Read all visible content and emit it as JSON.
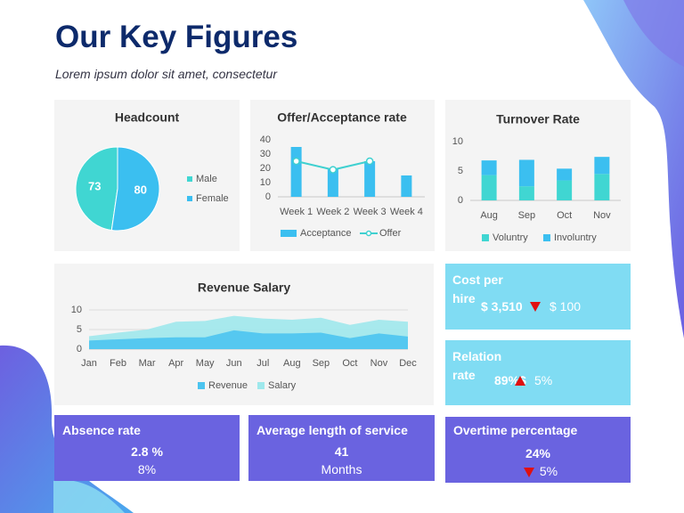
{
  "header": {
    "title": "Our Key Figures",
    "subtitle": "Lorem ipsum dolor sit amet, consectetur"
  },
  "chart_data": [
    {
      "type": "pie",
      "title": "Headcount",
      "categories": [
        "Male",
        "Female"
      ],
      "values": [
        73,
        80
      ],
      "colors": [
        "#40d6d2",
        "#3bbff0"
      ]
    },
    {
      "type": "bar",
      "title": "Offer/Acceptance rate",
      "categories": [
        "Week 1",
        "Week 2",
        "Week 3",
        "Week 4"
      ],
      "series": [
        {
          "name": "Acceptance",
          "type": "bar",
          "color": "#3bbff0",
          "values": [
            35,
            20,
            25,
            15
          ]
        },
        {
          "name": "Offer",
          "type": "line",
          "color": "#3fd0d0",
          "values": [
            25,
            19,
            25,
            null
          ]
        }
      ],
      "ylim": [
        0,
        40
      ],
      "yticks": [
        0,
        10,
        20,
        30,
        40
      ],
      "grid": false
    },
    {
      "type": "bar",
      "stacked": true,
      "title": "Turnover Rate",
      "categories": [
        "Aug",
        "Sep",
        "Oct",
        "Nov"
      ],
      "series": [
        {
          "name": "Voluntry",
          "color": "#40d6d2",
          "values": [
            4.3,
            2.4,
            3.4,
            4.5
          ]
        },
        {
          "name": "Involuntry",
          "color": "#3bbff0",
          "values": [
            2.5,
            4.5,
            2,
            2.9
          ]
        }
      ],
      "ylim": [
        0,
        10
      ],
      "yticks": [
        0,
        5,
        10
      ],
      "grid": false
    },
    {
      "type": "area",
      "title": "Revenue Salary",
      "categories": [
        "Jan",
        "Feb",
        "Mar",
        "Apr",
        "May",
        "Jun",
        "Jul",
        "Aug",
        "Sep",
        "Oct",
        "Nov",
        "Dec"
      ],
      "series": [
        {
          "name": "Revenue",
          "color": "#4cc4ef",
          "values": [
            2.2,
            2.5,
            2.8,
            3,
            3,
            4.8,
            4,
            4,
            4.2,
            2.8,
            4,
            3.2
          ]
        },
        {
          "name": "Salary",
          "color": "#9ee8ec",
          "values": [
            3.3,
            4.2,
            5,
            7,
            7.2,
            8.5,
            7.8,
            7.5,
            8,
            6.2,
            7.5,
            7
          ]
        }
      ],
      "ylim": [
        0,
        10
      ],
      "yticks": [
        0,
        5,
        10
      ],
      "grid": true
    }
  ],
  "kpis": [
    {
      "title": "Cost per hire",
      "value": "$ 3,510",
      "change": "$ 100",
      "direction": "down"
    },
    {
      "title": "Relation rate",
      "value": "89%$",
      "change": "5%",
      "direction": "up"
    },
    {
      "title": "Absence rate",
      "value": "2.8 %",
      "change": "8%"
    },
    {
      "title": "Average length of service",
      "value": "41",
      "change": "Months"
    },
    {
      "title": "Overtime percentage",
      "value": "24%",
      "change": "5%",
      "direction": "down"
    }
  ]
}
